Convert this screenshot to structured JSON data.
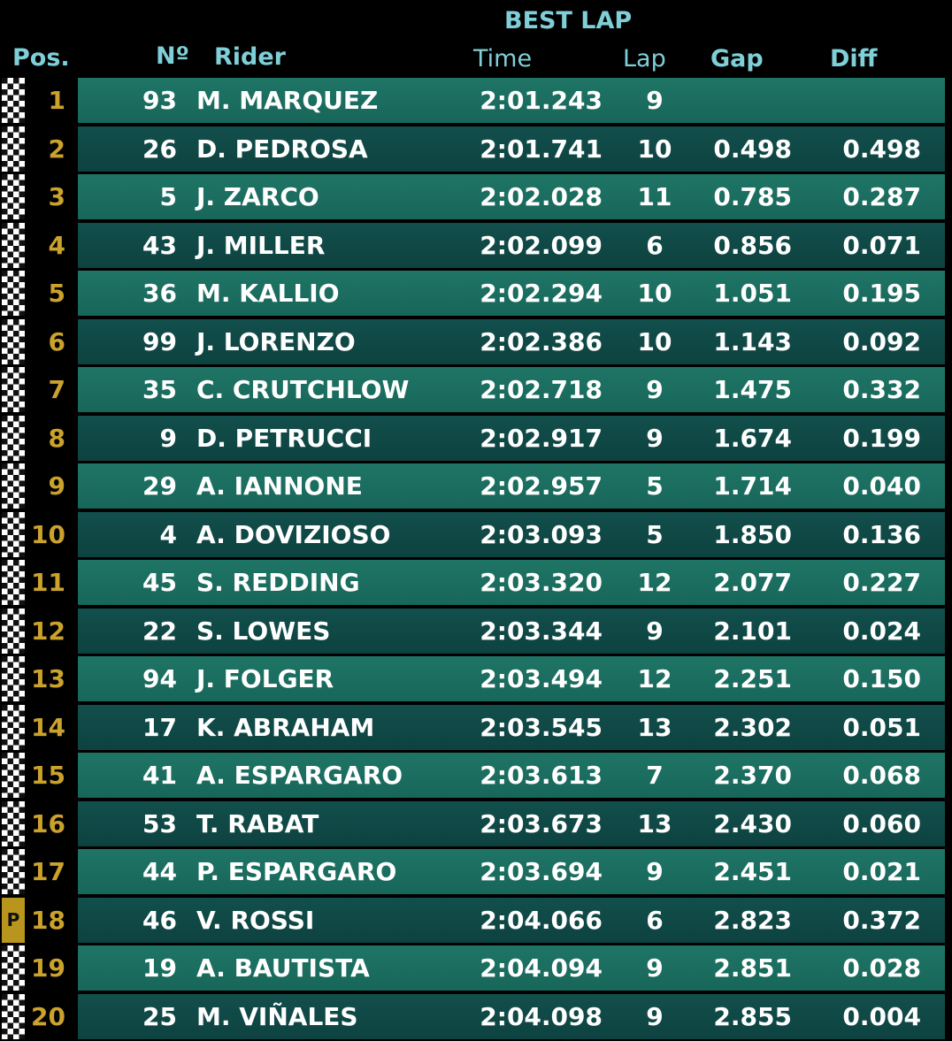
{
  "header": {
    "section": "BEST LAP",
    "columns": {
      "pos": "Pos.",
      "number": "Nº",
      "rider": "Rider",
      "time": "Time",
      "lap": "Lap",
      "gap": "Gap",
      "diff": "Diff"
    }
  },
  "table": {
    "rows": [
      {
        "pos": 1,
        "number": 93,
        "rider": "M. MARQUEZ",
        "time": "2:01.243",
        "lap": 9
      },
      {
        "pos": 2,
        "number": 26,
        "rider": "D. PEDROSA",
        "time": "2:01.741",
        "lap": 10,
        "gap": "0.498",
        "diff": "0.498"
      },
      {
        "pos": 3,
        "number": 5,
        "rider": "J. ZARCO",
        "time": "2:02.028",
        "lap": 11,
        "gap": "0.785",
        "diff": "0.287"
      },
      {
        "pos": 4,
        "number": 43,
        "rider": "J. MILLER",
        "time": "2:02.099",
        "lap": 6,
        "gap": "0.856",
        "diff": "0.071"
      },
      {
        "pos": 5,
        "number": 36,
        "rider": "M. KALLIO",
        "time": "2:02.294",
        "lap": 10,
        "gap": "1.051",
        "diff": "0.195"
      },
      {
        "pos": 6,
        "number": 99,
        "rider": "J. LORENZO",
        "time": "2:02.386",
        "lap": 10,
        "gap": "1.143",
        "diff": "0.092"
      },
      {
        "pos": 7,
        "number": 35,
        "rider": "C. CRUTCHLOW",
        "time": "2:02.718",
        "lap": 9,
        "gap": "1.475",
        "diff": "0.332"
      },
      {
        "pos": 8,
        "number": 9,
        "rider": "D. PETRUCCI",
        "time": "2:02.917",
        "lap": 9,
        "gap": "1.674",
        "diff": "0.199"
      },
      {
        "pos": 9,
        "number": 29,
        "rider": "A. IANNONE",
        "time": "2:02.957",
        "lap": 5,
        "gap": "1.714",
        "diff": "0.040"
      },
      {
        "pos": 10,
        "number": 4,
        "rider": "A. DOVIZIOSO",
        "time": "2:03.093",
        "lap": 5,
        "gap": "1.850",
        "diff": "0.136"
      },
      {
        "pos": 11,
        "number": 45,
        "rider": "S. REDDING",
        "time": "2:03.320",
        "lap": 12,
        "gap": "2.077",
        "diff": "0.227"
      },
      {
        "pos": 12,
        "number": 22,
        "rider": "S. LOWES",
        "time": "2:03.344",
        "lap": 9,
        "gap": "2.101",
        "diff": "0.024"
      },
      {
        "pos": 13,
        "number": 94,
        "rider": "J. FOLGER",
        "time": "2:03.494",
        "lap": 12,
        "gap": "2.251",
        "diff": "0.150"
      },
      {
        "pos": 14,
        "number": 17,
        "rider": "K. ABRAHAM",
        "time": "2:03.545",
        "lap": 13,
        "gap": "2.302",
        "diff": "0.051"
      },
      {
        "pos": 15,
        "number": 41,
        "rider": "A. ESPARGARO",
        "time": "2:03.613",
        "lap": 7,
        "gap": "2.370",
        "diff": "0.068"
      },
      {
        "pos": 16,
        "number": 53,
        "rider": "T. RABAT",
        "time": "2:03.673",
        "lap": 13,
        "gap": "2.430",
        "diff": "0.060"
      },
      {
        "pos": 17,
        "number": 44,
        "rider": "P. ESPARGARO",
        "time": "2:03.694",
        "lap": 9,
        "gap": "2.451",
        "diff": "0.021"
      },
      {
        "pos": 18,
        "number": 46,
        "rider": "V. ROSSI",
        "time": "2:04.066",
        "lap": 6,
        "gap": "2.823",
        "diff": "0.372",
        "flag": "P"
      },
      {
        "pos": 19,
        "number": 19,
        "rider": "A. BAUTISTA",
        "time": "2:04.094",
        "lap": 9,
        "gap": "2.851",
        "diff": "0.028"
      },
      {
        "pos": 20,
        "number": 25,
        "rider": "M. VIÑALES",
        "time": "2:04.098",
        "lap": 9,
        "gap": "2.855",
        "diff": "0.004"
      }
    ]
  }
}
